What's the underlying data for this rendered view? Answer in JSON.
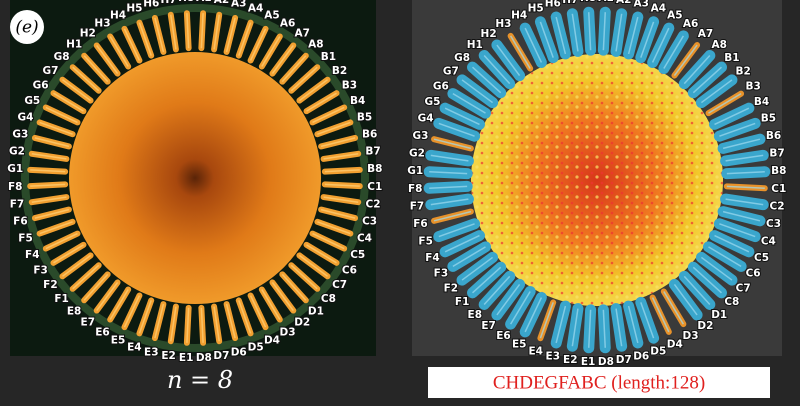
{
  "panel_label": "(e)",
  "spoke_labels": [
    "A1",
    "A2",
    "A3",
    "A4",
    "A5",
    "A6",
    "A7",
    "A8",
    "B1",
    "B2",
    "B3",
    "B4",
    "B5",
    "B6",
    "B7",
    "B8",
    "C1",
    "C2",
    "C3",
    "C4",
    "C5",
    "C6",
    "C7",
    "C8",
    "D1",
    "D2",
    "D3",
    "D4",
    "D5",
    "D6",
    "D7",
    "D8",
    "E1",
    "E2",
    "E3",
    "E4",
    "E5",
    "E6",
    "E7",
    "E8",
    "F1",
    "F2",
    "F3",
    "F4",
    "F5",
    "F6",
    "F7",
    "F8",
    "G1",
    "G2",
    "G3",
    "G4",
    "G5",
    "G6",
    "G7",
    "G8",
    "H1",
    "H2",
    "H3",
    "H4",
    "H5",
    "H6",
    "H7",
    "H8"
  ],
  "left_caption": "n = 8",
  "right_caption": "CHDEGFABC (length:128)"
}
